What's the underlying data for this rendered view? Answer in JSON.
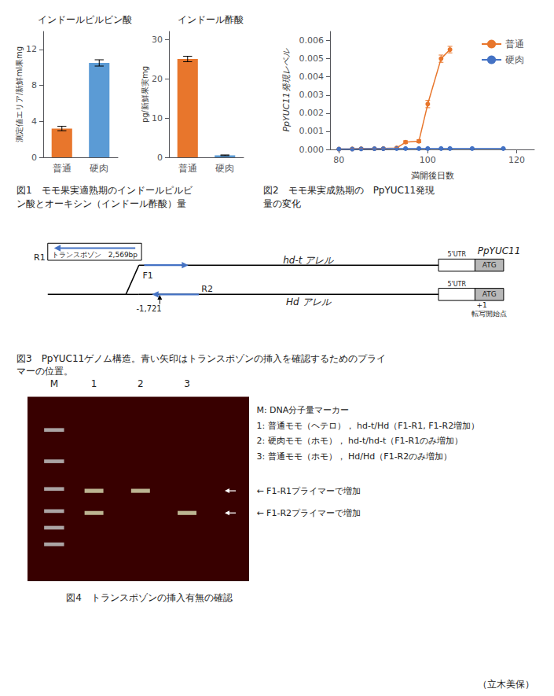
{
  "chart_data": [
    {
      "type": "bar",
      "title": "インドールピルビン酸",
      "categories": [
        "普通",
        "硬肉"
      ],
      "values": [
        3.2,
        10.5
      ],
      "errors": [
        0.25,
        0.35
      ],
      "colors": [
        "#E8762C",
        "#5B9BD5"
      ],
      "ylabel": "測定値エリア/新鮮ml果mg",
      "ylim": [
        0,
        14
      ],
      "yticks": [
        0,
        4,
        8,
        12
      ],
      "grid": false,
      "annotations": [
        "図1　モモ果実適熟期のインドールピルビ",
        "ン酸とオーキシン（インドール酢酸）量"
      ]
    },
    {
      "type": "bar",
      "title": "インドール酢酸",
      "categories": [
        "普通",
        "硬肉"
      ],
      "values": [
        25.0,
        0.5
      ],
      "errors": [
        0.7,
        0.1
      ],
      "colors": [
        "#E8762C",
        "#5B9BD5"
      ],
      "ylabel": "pg/新鮮果実mg",
      "ylim": [
        0,
        32
      ],
      "yticks": [
        0,
        10,
        20,
        30
      ],
      "grid": false
    },
    {
      "type": "line",
      "xlabel": "満開後日数",
      "ylabel": "PpYUC11発現レベル",
      "xlim": [
        78,
        124
      ],
      "xticks": [
        80,
        100,
        120
      ],
      "ylim": [
        0,
        0.0065
      ],
      "yticks": [
        {
          "value": 0,
          "label": "0.000"
        },
        0.001,
        0.002,
        0.003,
        0.004,
        0.005,
        0.006
      ],
      "grid": false,
      "legend": "upper right",
      "series": [
        {
          "name": "普通",
          "color": "#E8762C",
          "marker": "circle",
          "x": [
            80,
            83,
            85,
            88,
            90,
            93,
            95,
            98,
            100,
            103,
            105
          ],
          "values": [
            2e-05,
            3e-05,
            4e-05,
            4e-05,
            5e-05,
            8e-05,
            0.0004,
            0.00045,
            0.0025,
            0.005,
            0.0055
          ],
          "errors": [
            3e-06,
            3e-06,
            3e-06,
            3e-06,
            3e-06,
            1e-05,
            8e-05,
            8e-05,
            0.0002,
            0.0002,
            0.00018
          ]
        },
        {
          "name": "硬肉",
          "color": "#4472C4",
          "marker": "circle",
          "x": [
            80,
            83,
            85,
            88,
            90,
            93,
            95,
            98,
            100,
            103,
            105,
            110,
            117
          ],
          "values": [
            2e-05,
            2e-05,
            3e-05,
            4e-05,
            4e-05,
            5e-05,
            5e-05,
            5e-05,
            5e-05,
            5e-05,
            5e-05,
            5e-05,
            5e-05
          ],
          "errors": [
            2e-06,
            2e-06,
            2e-06,
            2e-06,
            2e-06,
            2e-06,
            2e-06,
            2e-06,
            2e-06,
            2e-06,
            2e-06,
            2e-06,
            2e-06
          ]
        }
      ],
      "annotations": [
        "図2　モモ果実成熟期の　PpYUC11発現",
        "量の変化"
      ]
    },
    {
      "type": "diagram",
      "color": "#4472C4",
      "annotations": [
        "トランスポゾン　2,569bp",
        "R1",
        "F1",
        "R2",
        "-1,721",
        "hd-t アレル",
        "Hd アレル",
        "PpYUC11",
        "5'UTR",
        "ATG",
        "+1",
        "転写開始点",
        "図3　PpYUC11ゲノム構造。青い矢印はトランスポゾンの挿入を確認するためのプライ",
        "マーの位置。"
      ]
    },
    {
      "type": "gel",
      "categories": [
        "M",
        "1",
        "2",
        "3"
      ],
      "annotations": [
        "M: DNA分子量マーカー",
        "1: 普通モモ（ヘテロ）， hd-t/Hd（F1-R1, F1-R2増加）",
        "2: 硬肉モモ（ホモ）， hd-t/hd-t（F1-R1のみ増加）",
        "3: 普通モモ（ホモ）， Hd/Hd（F1-R2のみ増加）",
        "← F1-R1プライマーで増加",
        "← F1-R2プライマーで増加",
        "図4　トランスポゾンの挿入有無の確認",
        "（立木美保）"
      ]
    }
  ]
}
